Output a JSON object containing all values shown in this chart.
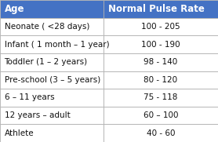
{
  "header": [
    "Age",
    "Normal Pulse Rate"
  ],
  "rows": [
    [
      "Neonate ( <28 days)",
      "100 - 205"
    ],
    [
      "Infant ( 1 month – 1 year)",
      "100 - 190"
    ],
    [
      "Toddler (1 – 2 years)",
      "98 - 140"
    ],
    [
      "Pre-school (3 – 5 years)",
      "80 - 120"
    ],
    [
      "6 – 11 years",
      "75 - 118"
    ],
    [
      "12 years – adult",
      "60 – 100"
    ],
    [
      "Athlete",
      "40 - 60"
    ]
  ],
  "header_bg": "#4472C4",
  "header_fg": "#FFFFFF",
  "row_bg": "#FFFFFF",
  "border_color": "#B0B0B0",
  "text_color": "#111111",
  "col_split": 0.475,
  "header_fontsize": 8.5,
  "row_fontsize": 7.5
}
